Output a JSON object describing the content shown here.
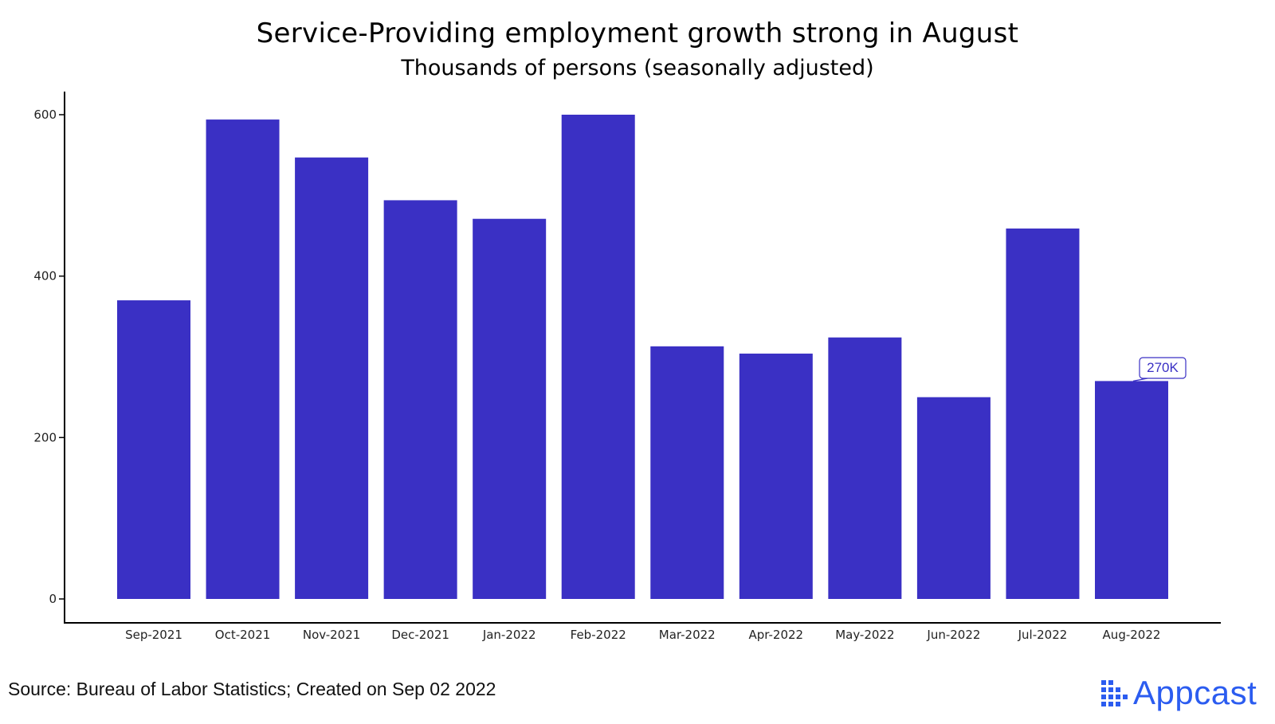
{
  "title": "Service-Providing employment growth strong in August",
  "subtitle": "Thousands of persons (seasonally adjusted)",
  "source": "Source: Bureau of Labor Statistics; Created on Sep 02 2022",
  "brand": {
    "name": "Appcast",
    "color": "#2b5cf0",
    "icon": "appcast-dots-icon"
  },
  "colors": {
    "bar": "#3a30c4",
    "annotation": "#3a30c4"
  },
  "chart_data": {
    "type": "bar",
    "categories": [
      "Sep-2021",
      "Oct-2021",
      "Nov-2021",
      "Dec-2021",
      "Jan-2022",
      "Feb-2022",
      "Mar-2022",
      "Apr-2022",
      "May-2022",
      "Jun-2022",
      "Jul-2022",
      "Aug-2022"
    ],
    "values": [
      370,
      594,
      547,
      494,
      471,
      600,
      313,
      304,
      324,
      250,
      459,
      270
    ],
    "ylim": [
      0,
      620
    ],
    "yticks": [
      0,
      200,
      400,
      600
    ],
    "grid": false,
    "annotation": {
      "category": "Aug-2022",
      "text": "270K"
    }
  }
}
